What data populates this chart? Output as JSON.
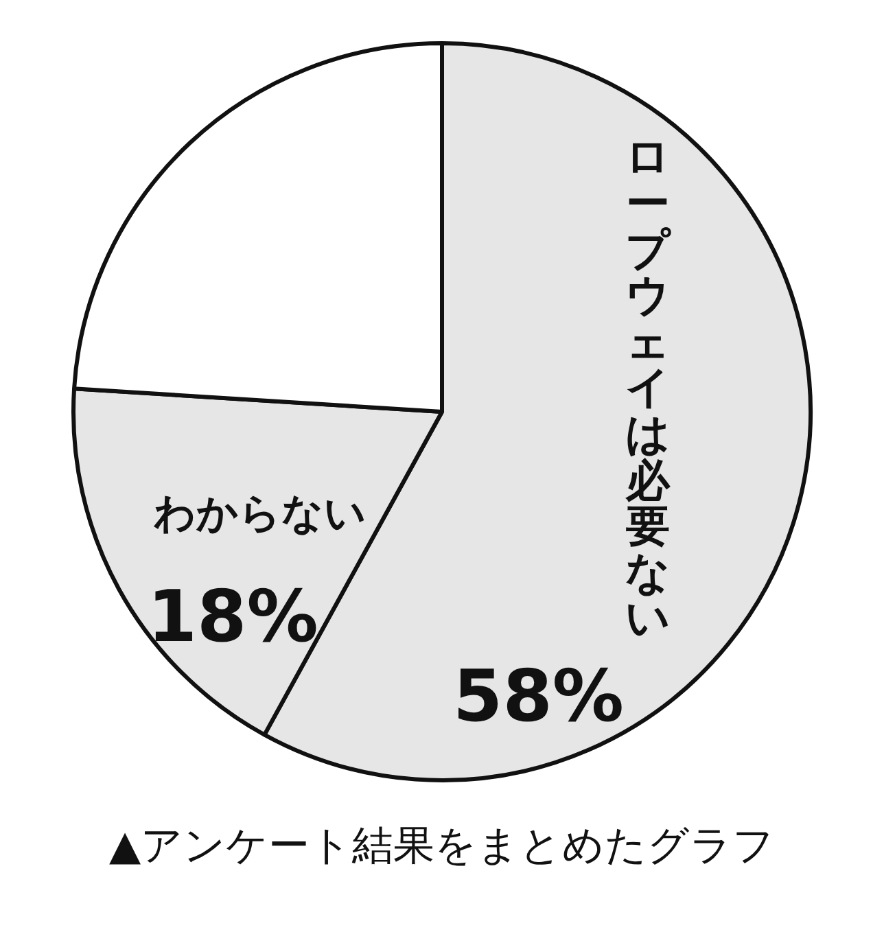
{
  "chart_data": {
    "type": "pie",
    "categories": [
      "ロープウェイは必要ない",
      "わからない",
      null
    ],
    "values": [
      58,
      18,
      24
    ],
    "colors": [
      "#e6e6e6",
      "#e6e6e6",
      "#ffffff"
    ],
    "value_labels": [
      "58%",
      "18%",
      null
    ],
    "annotations": [
      "▲アンケート結果をまとめたグラフ"
    ]
  }
}
